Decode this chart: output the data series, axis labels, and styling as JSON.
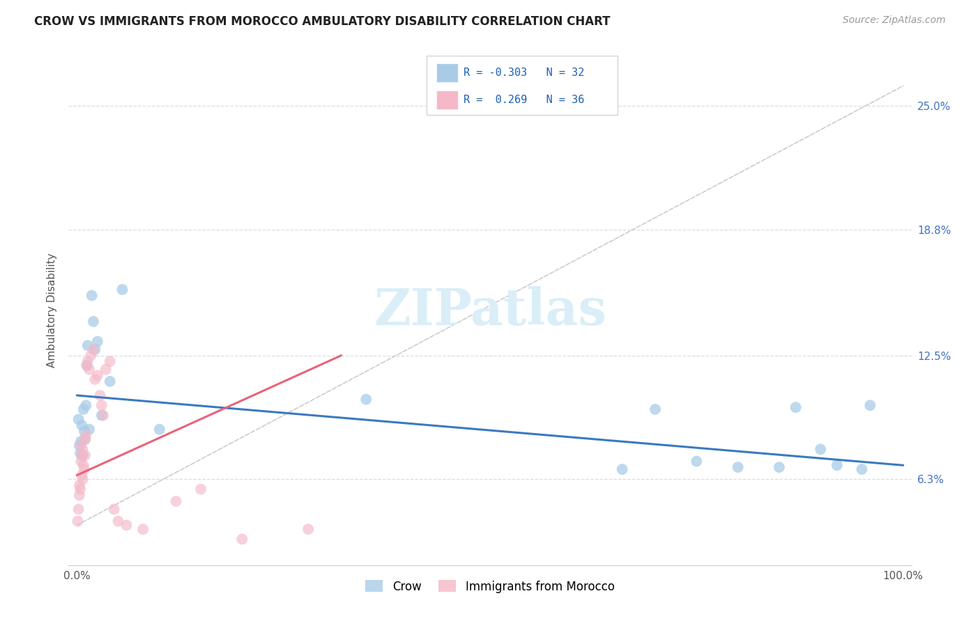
{
  "title": "CROW VS IMMIGRANTS FROM MOROCCO AMBULATORY DISABILITY CORRELATION CHART",
  "source": "Source: ZipAtlas.com",
  "ylabel": "Ambulatory Disability",
  "ytick_labels": [
    "6.3%",
    "12.5%",
    "18.8%",
    "25.0%"
  ],
  "ytick_values": [
    0.063,
    0.125,
    0.188,
    0.25
  ],
  "legend_crow_R": "-0.303",
  "legend_crow_N": "32",
  "legend_morocco_R": "0.269",
  "legend_morocco_N": "36",
  "crow_color": "#a8cce8",
  "morocco_color": "#f4b8c8",
  "crow_line_color": "#3a7abf",
  "morocco_line_color": "#e8637a",
  "dashed_line_color": "#cccccc",
  "background_color": "#ffffff",
  "crow_scatter_x": [
    0.002,
    0.003,
    0.004,
    0.005,
    0.006,
    0.007,
    0.008,
    0.009,
    0.01,
    0.011,
    0.012,
    0.013,
    0.015,
    0.018,
    0.02,
    0.022,
    0.025,
    0.03,
    0.04,
    0.055,
    0.1,
    0.35,
    0.66,
    0.7,
    0.75,
    0.8,
    0.85,
    0.87,
    0.9,
    0.92,
    0.95,
    0.96
  ],
  "crow_scatter_y": [
    0.093,
    0.08,
    0.076,
    0.082,
    0.09,
    0.075,
    0.098,
    0.087,
    0.083,
    0.1,
    0.12,
    0.13,
    0.088,
    0.155,
    0.142,
    0.128,
    0.132,
    0.095,
    0.112,
    0.158,
    0.088,
    0.103,
    0.068,
    0.098,
    0.072,
    0.069,
    0.069,
    0.099,
    0.078,
    0.07,
    0.068,
    0.1
  ],
  "morocco_scatter_x": [
    0.001,
    0.002,
    0.003,
    0.003,
    0.004,
    0.005,
    0.005,
    0.006,
    0.006,
    0.007,
    0.007,
    0.008,
    0.009,
    0.01,
    0.01,
    0.011,
    0.012,
    0.013,
    0.015,
    0.017,
    0.02,
    0.022,
    0.025,
    0.028,
    0.03,
    0.032,
    0.035,
    0.04,
    0.045,
    0.05,
    0.06,
    0.08,
    0.12,
    0.15,
    0.2,
    0.28
  ],
  "morocco_scatter_y": [
    0.042,
    0.048,
    0.055,
    0.06,
    0.058,
    0.072,
    0.08,
    0.065,
    0.075,
    0.063,
    0.078,
    0.07,
    0.068,
    0.075,
    0.083,
    0.085,
    0.12,
    0.122,
    0.118,
    0.125,
    0.128,
    0.113,
    0.115,
    0.105,
    0.1,
    0.095,
    0.118,
    0.122,
    0.048,
    0.042,
    0.04,
    0.038,
    0.052,
    0.058,
    0.033,
    0.038
  ],
  "crow_trend_x": [
    0.0,
    1.0
  ],
  "crow_trend_y": [
    0.105,
    0.07
  ],
  "morocco_trend_x": [
    0.0,
    0.32
  ],
  "morocco_trend_y": [
    0.065,
    0.125
  ],
  "dashed_trend_x": [
    0.0,
    1.0
  ],
  "dashed_trend_y": [
    0.04,
    0.26
  ],
  "xlim": [
    -0.01,
    1.01
  ],
  "ylim": [
    0.02,
    0.275
  ],
  "xtick_positions": [
    0.0,
    0.1,
    0.2,
    0.3,
    0.4,
    0.5,
    0.6,
    0.7,
    0.8,
    0.9,
    1.0
  ]
}
